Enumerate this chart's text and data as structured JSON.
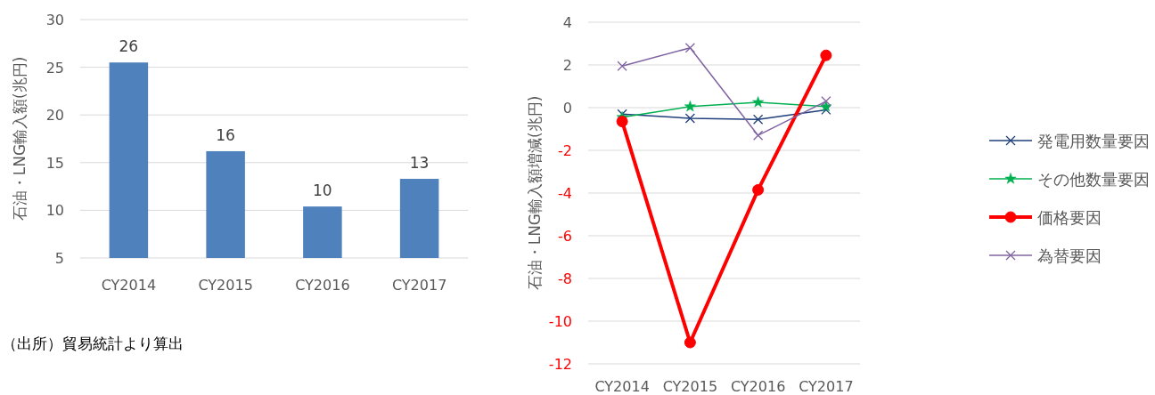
{
  "chart_data": [
    {
      "type": "bar",
      "ylabel": "石油・LNG輸入額(兆円)",
      "categories": [
        "CY2014",
        "CY2015",
        "CY2016",
        "CY2017"
      ],
      "values": [
        25.5,
        16.2,
        10.4,
        13.3
      ],
      "value_labels": [
        "26",
        "16",
        "10",
        "13"
      ],
      "color": "#4f81bd",
      "ylim": [
        5,
        30
      ],
      "yticks": [
        5,
        10,
        15,
        20,
        25,
        30
      ],
      "grid": "y",
      "annotations": [
        "（出所）貿易統計より算出"
      ]
    },
    {
      "type": "line",
      "ylabel": "石油・LNG輸入額増減(兆円)",
      "categories": [
        "CY2014",
        "CY2015",
        "CY2016",
        "CY2017"
      ],
      "series": [
        {
          "name": "発電用数量要因",
          "color": "#1f3f7a",
          "marker": "cross",
          "values": [
            -0.3,
            -0.5,
            -0.55,
            -0.1
          ]
        },
        {
          "name": "その他数量要因",
          "color": "#00b050",
          "marker": "star",
          "values": [
            -0.45,
            0.05,
            0.25,
            0.05
          ]
        },
        {
          "name": "価格要因",
          "color": "#ff0000",
          "marker": "circle",
          "values": [
            -0.65,
            -11,
            -3.85,
            2.45
          ]
        },
        {
          "name": "為替要因",
          "color": "#8064a2",
          "marker": "cross",
          "values": [
            1.95,
            2.8,
            -1.3,
            0.3
          ]
        }
      ],
      "ylim": [
        -12,
        4
      ],
      "yticks": [
        -12,
        -10,
        -8,
        -6,
        -4,
        -2,
        0,
        2,
        4
      ],
      "grid": "y",
      "legend": "right"
    }
  ]
}
